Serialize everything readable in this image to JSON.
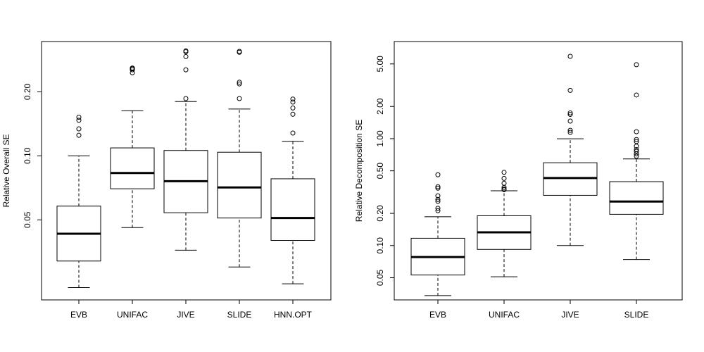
{
  "chart_data": [
    {
      "type": "boxplot",
      "title": "",
      "xlabel": "",
      "ylabel": "Relative Overall SE",
      "yscale": "log",
      "ylim": [
        0.021,
        0.345
      ],
      "yticks": [
        0.05,
        0.1,
        0.2
      ],
      "ytick_labels": [
        "0.05",
        "0.10",
        "0.20"
      ],
      "categories": [
        "EVB",
        "UNIFAC",
        "JIVE",
        "SLIDE",
        "HNN.OPT"
      ],
      "boxes": [
        {
          "name": "EVB",
          "whisker_low": 0.024,
          "q1": 0.032,
          "median": 0.043,
          "q3": 0.058,
          "whisker_high": 0.1,
          "outliers": [
            0.125,
            0.134,
            0.147,
            0.152
          ]
        },
        {
          "name": "UNIFAC",
          "whisker_low": 0.046,
          "q1": 0.07,
          "median": 0.083,
          "q3": 0.109,
          "whisker_high": 0.163,
          "outliers": [
            0.246,
            0.254,
            0.257,
            0.259
          ]
        },
        {
          "name": "JIVE",
          "whisker_low": 0.036,
          "q1": 0.054,
          "median": 0.076,
          "q3": 0.106,
          "whisker_high": 0.18,
          "outliers": [
            0.186,
            0.254,
            0.293,
            0.309,
            0.312
          ]
        },
        {
          "name": "SLIDE",
          "whisker_low": 0.03,
          "q1": 0.051,
          "median": 0.071,
          "q3": 0.104,
          "whisker_high": 0.166,
          "outliers": [
            0.186,
            0.218,
            0.222,
            0.307,
            0.31
          ]
        },
        {
          "name": "HNN.OPT",
          "whisker_low": 0.025,
          "q1": 0.04,
          "median": 0.051,
          "q3": 0.078,
          "whisker_high": 0.117,
          "outliers": [
            0.128,
            0.157,
            0.168,
            0.179,
            0.185
          ]
        }
      ]
    },
    {
      "type": "boxplot",
      "title": "",
      "xlabel": "",
      "ylabel": "Relative Decomposition SE",
      "yscale": "log",
      "ylim": [
        0.031,
        8.1
      ],
      "yticks": [
        0.05,
        0.1,
        0.2,
        0.5,
        1.0,
        2.0,
        5.0
      ],
      "ytick_labels": [
        "0.05",
        "0.10",
        "0.20",
        "0.50",
        "1.00",
        "2.00",
        "5.00"
      ],
      "categories": [
        "EVB",
        "UNIFAC",
        "JIVE",
        "SLIDE"
      ],
      "boxes": [
        {
          "name": "EVB",
          "whisker_low": 0.034,
          "q1": 0.053,
          "median": 0.078,
          "q3": 0.117,
          "whisker_high": 0.186,
          "outliers": [
            0.212,
            0.223,
            0.259,
            0.27,
            0.292,
            0.344,
            0.355,
            0.459
          ]
        },
        {
          "name": "UNIFAC",
          "whisker_low": 0.051,
          "q1": 0.092,
          "median": 0.133,
          "q3": 0.19,
          "whisker_high": 0.325,
          "outliers": [
            0.333,
            0.338,
            0.35,
            0.382,
            0.425,
            0.484
          ]
        },
        {
          "name": "JIVE",
          "whisker_low": 0.1,
          "q1": 0.295,
          "median": 0.428,
          "q3": 0.595,
          "whisker_high": 0.997,
          "outliers": [
            1.145,
            1.196,
            1.46,
            1.684,
            1.74,
            2.83,
            5.89
          ]
        },
        {
          "name": "SLIDE",
          "whisker_low": 0.074,
          "q1": 0.196,
          "median": 0.258,
          "q3": 0.396,
          "whisker_high": 0.646,
          "outliers": [
            0.685,
            0.72,
            0.76,
            0.79,
            0.85,
            0.94,
            0.98,
            1.16,
            2.56,
            4.92
          ]
        }
      ]
    }
  ]
}
